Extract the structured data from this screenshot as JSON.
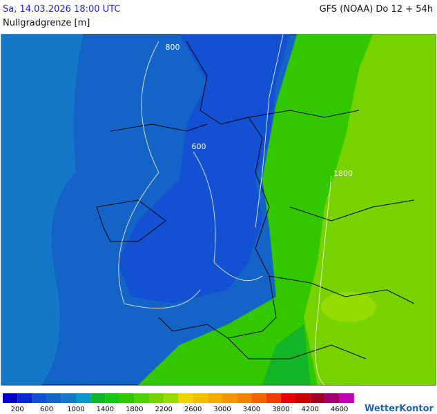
{
  "header": {
    "datetime": "Sa, 14.03.2026 18:00 UTC",
    "model": "GFS (NOAA) Do 12 + 54h",
    "parameter": "Nullgradgrenze [m]"
  },
  "map": {
    "contour_labels": [
      "800",
      "600",
      "1800"
    ]
  },
  "legend": {
    "colors": [
      "#0000c8",
      "#0a28d2",
      "#1450d2",
      "#1464c8",
      "#1478c8",
      "#0a96c8",
      "#14b428",
      "#14c814",
      "#32c800",
      "#50d200",
      "#78d200",
      "#96dc00",
      "#f0d200",
      "#f0c000",
      "#f0aa00",
      "#f09600",
      "#f08200",
      "#f06400",
      "#f03c00",
      "#e60000",
      "#c80000",
      "#a00028",
      "#a0006e",
      "#c000b4"
    ],
    "labels": [
      "200",
      "600",
      "1000",
      "1400",
      "1800",
      "2200",
      "2600",
      "3000",
      "3400",
      "3800",
      "4200",
      "4600"
    ]
  },
  "logo": "WetterKontor"
}
